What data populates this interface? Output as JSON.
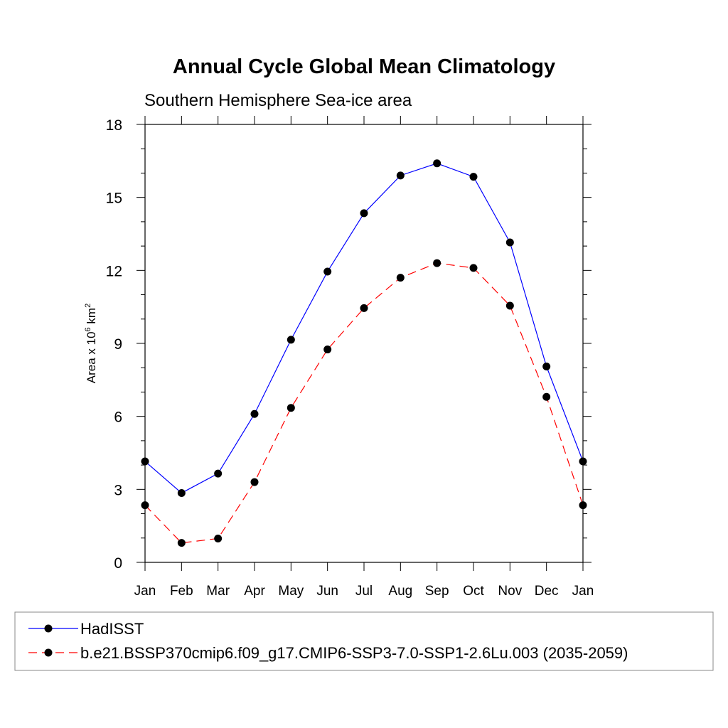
{
  "chart_data": {
    "type": "line",
    "title": "Annual Cycle Global Mean Climatology",
    "subtitle": "Southern Hemisphere Sea-ice area",
    "ylabel": {
      "prefix": "Area x 10",
      "sup1": "6",
      "mid": " km",
      "sup2": "2"
    },
    "categories": [
      "Jan",
      "Feb",
      "Mar",
      "Apr",
      "May",
      "Jun",
      "Jul",
      "Aug",
      "Sep",
      "Oct",
      "Nov",
      "Dec",
      "Jan"
    ],
    "yticks": [
      0,
      3,
      6,
      9,
      12,
      15,
      18
    ],
    "ylim": [
      0,
      18
    ],
    "grid": false,
    "legend_placement": "bottom",
    "series": [
      {
        "name": "HadISST",
        "color": "#0000ff",
        "dash": "solid",
        "values": [
          4.15,
          2.85,
          3.65,
          6.1,
          9.15,
          11.95,
          14.35,
          15.9,
          16.4,
          15.85,
          13.15,
          8.05,
          4.15
        ]
      },
      {
        "name": "b.e21.BSSP370cmip6.f09_g17.CMIP6-SSP3-7.0-SSP1-2.6Lu.003 (2035-2059)",
        "color": "#ff0000",
        "dash": "dashed",
        "values": [
          2.35,
          0.8,
          0.98,
          3.3,
          6.35,
          8.75,
          10.45,
          11.7,
          12.3,
          12.1,
          10.55,
          6.8,
          2.35
        ]
      }
    ]
  }
}
